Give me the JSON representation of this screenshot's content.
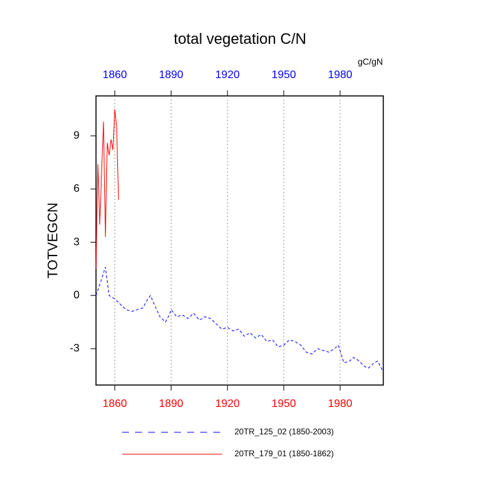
{
  "chart_data": {
    "type": "line",
    "title": "total vegetation C/N",
    "units": "gC/gN",
    "ylabel": "TOTVEGCN",
    "xlim": [
      1850,
      2003
    ],
    "xticks": [
      1860,
      1890,
      1920,
      1950,
      1980
    ],
    "ylim": [
      -5.05,
      11.25
    ],
    "yticks": [
      -3,
      0,
      3,
      6,
      9
    ],
    "grid": true,
    "bottom_tick_color": "#ff0000",
    "top_tick_color": "#0000ff",
    "legend": "bottom",
    "series": [
      {
        "name": "20TR_125_02 (1850-2003)",
        "color": "#0000ff",
        "line_style": "dashed",
        "x": [
          1850,
          1852,
          1855,
          1857,
          1860,
          1863,
          1866,
          1869,
          1872,
          1875,
          1877,
          1879,
          1881,
          1884,
          1887,
          1889,
          1890,
          1893,
          1896,
          1899,
          1902,
          1905,
          1908,
          1911,
          1914,
          1917,
          1920,
          1923,
          1926,
          1929,
          1932,
          1935,
          1938,
          1941,
          1944,
          1947,
          1950,
          1953,
          1956,
          1959,
          1962,
          1965,
          1968,
          1971,
          1974,
          1977,
          1979,
          1982,
          1985,
          1987,
          1989,
          1993,
          1995,
          1998,
          2000,
          2003
        ],
        "values": [
          0.0,
          0.6,
          1.6,
          0.0,
          -0.2,
          -0.5,
          -0.8,
          -0.9,
          -0.8,
          -0.7,
          -0.3,
          0.0,
          -0.5,
          -1.2,
          -1.5,
          -1.1,
          -0.8,
          -1.2,
          -1.1,
          -1.3,
          -1.0,
          -1.4,
          -1.2,
          -1.3,
          -1.6,
          -1.9,
          -1.8,
          -2.0,
          -1.9,
          -2.3,
          -2.1,
          -2.4,
          -2.2,
          -2.6,
          -2.5,
          -2.9,
          -2.8,
          -2.5,
          -2.6,
          -2.8,
          -3.2,
          -3.3,
          -3.0,
          -3.1,
          -3.2,
          -3.0,
          -2.8,
          -3.8,
          -3.7,
          -3.5,
          -3.6,
          -4.0,
          -4.1,
          -3.8,
          -3.7,
          -4.3
        ]
      },
      {
        "name": "20TR_179_01 (1850-1862)",
        "color": "#ff0000",
        "line_style": "solid",
        "x": [
          1850,
          1851,
          1852,
          1853,
          1854,
          1855,
          1856,
          1857,
          1858,
          1859,
          1860,
          1861,
          1862
        ],
        "values": [
          1.5,
          7.4,
          4.0,
          7.0,
          9.8,
          3.3,
          8.6,
          7.9,
          8.8,
          8.2,
          10.5,
          9.5,
          5.4
        ]
      }
    ]
  }
}
